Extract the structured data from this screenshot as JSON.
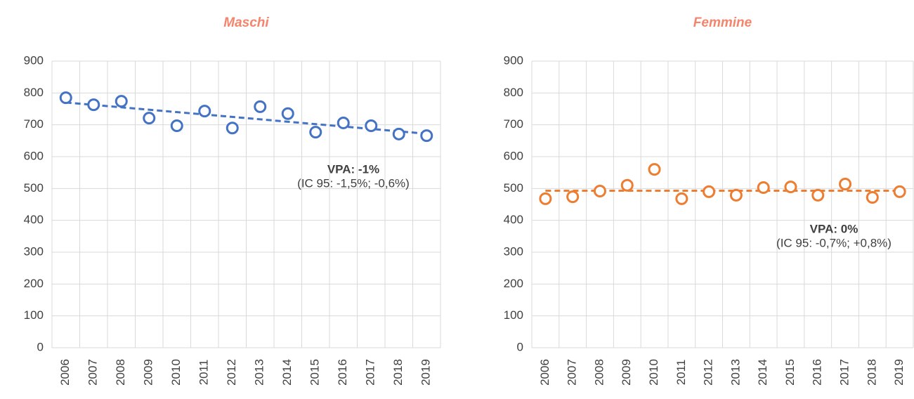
{
  "chart_data": [
    {
      "type": "scatter",
      "title": "Maschi",
      "categories": [
        "2006",
        "2007",
        "2008",
        "2009",
        "2010",
        "2011",
        "2012",
        "2013",
        "2014",
        "2015",
        "2016",
        "2017",
        "2018",
        "2019"
      ],
      "values": [
        785,
        763,
        774,
        721,
        697,
        743,
        690,
        757,
        735,
        677,
        706,
        697,
        671,
        666
      ],
      "color": "#4472c4",
      "trend": [
        770,
        672
      ],
      "annotations": [
        "VPA: -1%",
        "(IC 95: -1,5%; -0,6%)"
      ],
      "ylim": [
        0,
        900
      ],
      "yticks": [
        0,
        100,
        200,
        300,
        400,
        500,
        600,
        700,
        800,
        900
      ],
      "grid": true
    },
    {
      "type": "scatter",
      "title": "Femmine",
      "categories": [
        "2006",
        "2007",
        "2008",
        "2009",
        "2010",
        "2011",
        "2012",
        "2013",
        "2014",
        "2015",
        "2016",
        "2017",
        "2018",
        "2019"
      ],
      "values": [
        468,
        474,
        492,
        510,
        560,
        468,
        490,
        479,
        503,
        505,
        479,
        514,
        472,
        490
      ],
      "color": "#ed7d31",
      "trend": [
        493,
        493
      ],
      "annotations": [
        "VPA: 0%",
        "(IC 95: -0,7%; +0,8%)"
      ],
      "ylim": [
        0,
        900
      ],
      "yticks": [
        0,
        100,
        200,
        300,
        400,
        500,
        600,
        700,
        800,
        900
      ],
      "grid": true
    }
  ]
}
